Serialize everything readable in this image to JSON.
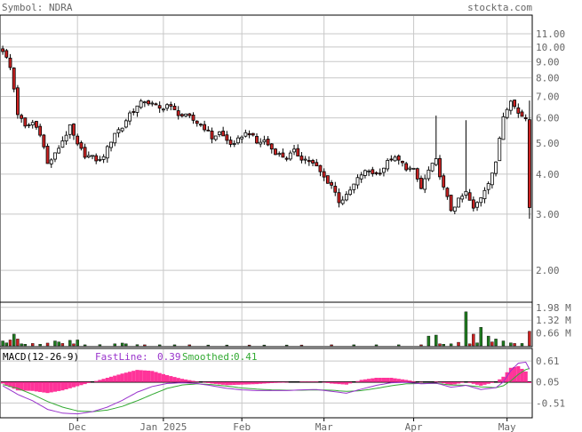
{
  "header": {
    "symbol_label": "Symbol: NDRA",
    "site": "stockta.com"
  },
  "colors": {
    "up_body": "#ffffff",
    "down_body": "#cc2222",
    "volume_up": "#1f7a1f",
    "volume_down": "#cc2222",
    "macd_hist": "#ff3399",
    "fast_line": "#9933cc",
    "smoothed_line": "#33aa33",
    "grid": "#c8c8c8",
    "label_text": "#666666"
  },
  "chart_data": [
    {
      "type": "candlestick",
      "name": "price",
      "scale": "log",
      "ylim": [
        1.6,
        12.5
      ],
      "yticks": [
        {
          "value": 11.0,
          "label": "11.00"
        },
        {
          "value": 10.0,
          "label": "10.00"
        },
        {
          "value": 9.0,
          "label": "9.00"
        },
        {
          "value": 8.0,
          "label": "8.00"
        },
        {
          "value": 7.0,
          "label": "7.00"
        },
        {
          "value": 6.0,
          "label": "6.00"
        },
        {
          "value": 5.0,
          "label": "5.00"
        },
        {
          "value": 4.0,
          "label": "4.00"
        },
        {
          "value": 3.0,
          "label": "3.00"
        },
        {
          "value": 2.0,
          "label": "2.00"
        }
      ],
      "xticks": [
        "Dec",
        "Jan 2025",
        "Feb",
        "Mar",
        "Apr",
        "May"
      ],
      "xtick_index": [
        20,
        43,
        64,
        86,
        110,
        135
      ],
      "num_periods": 142,
      "anchors": [
        [
          0,
          9.8
        ],
        [
          2,
          8.6
        ],
        [
          4,
          6.2
        ],
        [
          6,
          5.6
        ],
        [
          8,
          5.8
        ],
        [
          10,
          5.4
        ],
        [
          12,
          4.3
        ],
        [
          14,
          4.6
        ],
        [
          16,
          5.1
        ],
        [
          18,
          5.6
        ],
        [
          20,
          4.9
        ],
        [
          22,
          4.6
        ],
        [
          24,
          4.5
        ],
        [
          26,
          4.4
        ],
        [
          28,
          4.8
        ],
        [
          30,
          5.4
        ],
        [
          32,
          5.6
        ],
        [
          34,
          6.2
        ],
        [
          36,
          6.5
        ],
        [
          38,
          6.8
        ],
        [
          40,
          6.6
        ],
        [
          42,
          6.4
        ],
        [
          44,
          6.6
        ],
        [
          46,
          6.3
        ],
        [
          48,
          6.1
        ],
        [
          50,
          6.0
        ],
        [
          52,
          5.8
        ],
        [
          54,
          5.6
        ],
        [
          56,
          5.2
        ],
        [
          58,
          5.4
        ],
        [
          60,
          5.1
        ],
        [
          62,
          4.9
        ],
        [
          64,
          5.3
        ],
        [
          66,
          5.4
        ],
        [
          68,
          5.0
        ],
        [
          70,
          5.1
        ],
        [
          72,
          4.8
        ],
        [
          74,
          4.6
        ],
        [
          76,
          4.5
        ],
        [
          78,
          4.7
        ],
        [
          80,
          4.5
        ],
        [
          82,
          4.4
        ],
        [
          84,
          4.2
        ],
        [
          86,
          3.9
        ],
        [
          88,
          3.7
        ],
        [
          90,
          3.3
        ],
        [
          92,
          3.4
        ],
        [
          94,
          3.7
        ],
        [
          96,
          4.0
        ],
        [
          98,
          4.1
        ],
        [
          100,
          4.0
        ],
        [
          102,
          4.2
        ],
        [
          104,
          4.5
        ],
        [
          106,
          4.4
        ],
        [
          108,
          4.2
        ],
        [
          110,
          4.1
        ],
        [
          112,
          3.6
        ],
        [
          114,
          4.1
        ],
        [
          116,
          4.4
        ],
        [
          118,
          3.6
        ],
        [
          120,
          3.1
        ],
        [
          122,
          3.3
        ],
        [
          124,
          3.5
        ],
        [
          126,
          3.1
        ],
        [
          128,
          3.4
        ],
        [
          130,
          3.8
        ],
        [
          132,
          4.3
        ],
        [
          134,
          6.1
        ],
        [
          136,
          6.9
        ],
        [
          137,
          6.5
        ],
        [
          138,
          6.2
        ],
        [
          140,
          6.0
        ],
        [
          141,
          3.2
        ]
      ],
      "spikes": [
        [
          116,
          6.1
        ],
        [
          124,
          5.9
        ]
      ]
    },
    {
      "type": "bar",
      "name": "volume",
      "ylim": [
        0,
        2.2
      ],
      "yticks": [
        {
          "value": 1.98,
          "label": "1.98 M"
        },
        {
          "value": 1.32,
          "label": "1.32 M"
        },
        {
          "value": 0.66,
          "label": "0.66 M"
        }
      ],
      "bars": [
        [
          0,
          0.25,
          "up"
        ],
        [
          1,
          0.15,
          "up"
        ],
        [
          2,
          0.3,
          "down"
        ],
        [
          3,
          0.6,
          "up"
        ],
        [
          4,
          0.35,
          "down"
        ],
        [
          5,
          0.1,
          "up"
        ],
        [
          6,
          0.08,
          "up"
        ],
        [
          8,
          0.12,
          "down"
        ],
        [
          10,
          0.08,
          "up"
        ],
        [
          12,
          0.14,
          "down"
        ],
        [
          14,
          0.25,
          "up"
        ],
        [
          15,
          0.2,
          "up"
        ],
        [
          16,
          0.12,
          "down"
        ],
        [
          18,
          0.28,
          "up"
        ],
        [
          19,
          0.1,
          "down"
        ],
        [
          20,
          0.3,
          "up"
        ],
        [
          22,
          0.05,
          "up"
        ],
        [
          26,
          0.06,
          "up"
        ],
        [
          30,
          0.1,
          "up"
        ],
        [
          32,
          0.14,
          "up"
        ],
        [
          33,
          0.1,
          "up"
        ],
        [
          36,
          0.06,
          "up"
        ],
        [
          38,
          0.05,
          "down"
        ],
        [
          42,
          0.05,
          "up"
        ],
        [
          46,
          0.05,
          "up"
        ],
        [
          50,
          0.05,
          "down"
        ],
        [
          55,
          0.04,
          "up"
        ],
        [
          60,
          0.04,
          "up"
        ],
        [
          66,
          0.04,
          "down"
        ],
        [
          70,
          0.04,
          "up"
        ],
        [
          76,
          0.04,
          "up"
        ],
        [
          80,
          0.04,
          "down"
        ],
        [
          88,
          0.05,
          "down"
        ],
        [
          94,
          0.05,
          "up"
        ],
        [
          100,
          0.05,
          "up"
        ],
        [
          106,
          0.05,
          "up"
        ],
        [
          112,
          0.05,
          "down"
        ],
        [
          114,
          0.5,
          "up"
        ],
        [
          116,
          0.55,
          "up"
        ],
        [
          117,
          0.1,
          "down"
        ],
        [
          118,
          0.08,
          "up"
        ],
        [
          120,
          0.1,
          "up"
        ],
        [
          122,
          0.18,
          "down"
        ],
        [
          124,
          1.75,
          "up"
        ],
        [
          125,
          0.1,
          "down"
        ],
        [
          126,
          0.6,
          "down"
        ],
        [
          127,
          0.15,
          "up"
        ],
        [
          128,
          0.95,
          "up"
        ],
        [
          130,
          0.5,
          "up"
        ],
        [
          131,
          0.2,
          "down"
        ],
        [
          132,
          0.35,
          "up"
        ],
        [
          134,
          0.25,
          "up"
        ],
        [
          136,
          0.15,
          "up"
        ],
        [
          137,
          0.12,
          "down"
        ],
        [
          139,
          0.12,
          "up"
        ],
        [
          141,
          0.75,
          "down"
        ]
      ]
    },
    {
      "type": "line",
      "name": "macd",
      "title": "MACD(12-26-9)",
      "fast_label": "FastLine:",
      "fast_value": "0.39",
      "smoothed_label": "Smoothed:",
      "smoothed_value": "0.41",
      "ylim": [
        -0.88,
        0.92
      ],
      "yticks": [
        {
          "value": 0.61,
          "label": "0.61"
        },
        {
          "value": 0.05,
          "label": "0.05"
        },
        {
          "value": -0.51,
          "label": "-0.51"
        }
      ],
      "zero": 0.05,
      "fast": [
        [
          0,
          -0.05
        ],
        [
          4,
          -0.28
        ],
        [
          8,
          -0.45
        ],
        [
          12,
          -0.68
        ],
        [
          16,
          -0.78
        ],
        [
          20,
          -0.8
        ],
        [
          24,
          -0.74
        ],
        [
          28,
          -0.62
        ],
        [
          32,
          -0.44
        ],
        [
          36,
          -0.22
        ],
        [
          40,
          -0.07
        ],
        [
          44,
          0.01
        ],
        [
          48,
          0.03
        ],
        [
          52,
          0.01
        ],
        [
          56,
          -0.05
        ],
        [
          60,
          -0.12
        ],
        [
          64,
          -0.16
        ],
        [
          68,
          -0.18
        ],
        [
          72,
          -0.18
        ],
        [
          76,
          -0.18
        ],
        [
          80,
          -0.16
        ],
        [
          84,
          -0.15
        ],
        [
          88,
          -0.2
        ],
        [
          92,
          -0.25
        ],
        [
          96,
          -0.14
        ],
        [
          100,
          -0.04
        ],
        [
          104,
          0.03
        ],
        [
          108,
          0.04
        ],
        [
          112,
          0.0
        ],
        [
          116,
          0.02
        ],
        [
          120,
          -0.09
        ],
        [
          124,
          -0.04
        ],
        [
          128,
          -0.15
        ],
        [
          132,
          -0.1
        ],
        [
          134,
          0.05
        ],
        [
          136,
          0.35
        ],
        [
          138,
          0.55
        ],
        [
          140,
          0.58
        ],
        [
          141,
          0.39
        ]
      ],
      "smoothed": [
        [
          0,
          -0.02
        ],
        [
          4,
          -0.12
        ],
        [
          8,
          -0.28
        ],
        [
          12,
          -0.47
        ],
        [
          16,
          -0.62
        ],
        [
          20,
          -0.72
        ],
        [
          24,
          -0.74
        ],
        [
          28,
          -0.7
        ],
        [
          32,
          -0.6
        ],
        [
          36,
          -0.45
        ],
        [
          40,
          -0.28
        ],
        [
          44,
          -0.12
        ],
        [
          48,
          -0.03
        ],
        [
          52,
          0.0
        ],
        [
          56,
          -0.02
        ],
        [
          60,
          -0.06
        ],
        [
          64,
          -0.11
        ],
        [
          68,
          -0.14
        ],
        [
          72,
          -0.16
        ],
        [
          76,
          -0.17
        ],
        [
          80,
          -0.17
        ],
        [
          84,
          -0.16
        ],
        [
          88,
          -0.17
        ],
        [
          92,
          -0.2
        ],
        [
          96,
          -0.18
        ],
        [
          100,
          -0.12
        ],
        [
          104,
          -0.05
        ],
        [
          108,
          0.0
        ],
        [
          112,
          0.01
        ],
        [
          116,
          0.01
        ],
        [
          120,
          -0.03
        ],
        [
          124,
          -0.04
        ],
        [
          128,
          -0.08
        ],
        [
          132,
          -0.1
        ],
        [
          134,
          -0.05
        ],
        [
          136,
          0.08
        ],
        [
          138,
          0.25
        ],
        [
          140,
          0.38
        ],
        [
          141,
          0.41
        ]
      ]
    }
  ]
}
